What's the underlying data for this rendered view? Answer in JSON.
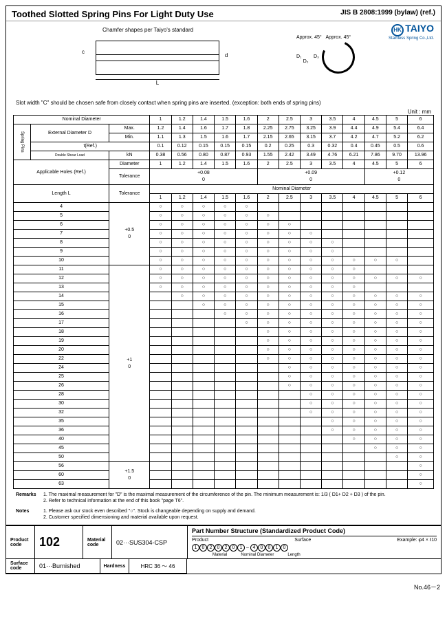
{
  "header": {
    "title": "Toothed Slotted Spring Pins For Light Duty Use",
    "ref": "JIS B 2808:1999 (bylaw) (ref.)"
  },
  "logo": {
    "brand": "TAIYO",
    "sub": "Stainless Spring Co.,Ltd.",
    "mark": "HK"
  },
  "diagram": {
    "chamfer": "Chamfer shapes per Taiyo's standard",
    "L": "L",
    "c": "c",
    "d": "d",
    "D": "D",
    "approx": "Approx.",
    "d1": "D₁",
    "d2": "D₂",
    "d3": "D₃",
    "a45": "45°"
  },
  "slotNote": "Slot width \"C\" should be chosen safe from closely contact when spring pins are inserted. (exception: both ends of spring pins)",
  "unit": "Unit : mm",
  "specHeaders": {
    "nominal": "Nominal Diameter",
    "spring": "Spring Pins",
    "ext": "External Diameter D",
    "max": "Max.",
    "min": "Min.",
    "tref": "t(Ref.)",
    "shear": "Double Shear Load",
    "kn": "kN",
    "holes": "Applicable Holes (Ref.)",
    "dia": "Diameter",
    "tol": "Tolerance",
    "lenL": "Length L"
  },
  "diameters": [
    "1",
    "1.2",
    "1.4",
    "1.5",
    "1.6",
    "2",
    "2.5",
    "3",
    "3.5",
    "4",
    "4.5",
    "5",
    "6"
  ],
  "rows": {
    "max": [
      "1.2",
      "1.4",
      "1.6",
      "1.7",
      "1.8",
      "2.25",
      "2.75",
      "3.25",
      "3.9",
      "4.4",
      "4.9",
      "5.4",
      "6.4"
    ],
    "min": [
      "1.1",
      "1.3",
      "1.5",
      "1.6",
      "1.7",
      "2.15",
      "2.65",
      "3.15",
      "3.7",
      "4.2",
      "4.7",
      "5.2",
      "6.2"
    ],
    "t": [
      "0.1",
      "0.12",
      "0.15",
      "0.15",
      "0.15",
      "0.2",
      "0.25",
      "0.3",
      "0.32",
      "0.4",
      "0.45",
      "0.5",
      "0.6"
    ],
    "kn": [
      "0.38",
      "0.56",
      "0.80",
      "0.87",
      "0.93",
      "1.55",
      "2.42",
      "3.49",
      "4.76",
      "6.21",
      "7.86",
      "9.70",
      "13.96"
    ],
    "holedia": [
      "1",
      "1.2",
      "1.4",
      "1.5",
      "1.6",
      "2",
      "2.5",
      "3",
      "3.5",
      "4",
      "4.5",
      "5",
      "6"
    ]
  },
  "tolGroups": [
    {
      "span": 5,
      "v": "+0.08\n0"
    },
    {
      "span": 5,
      "v": "+0.09\n0"
    },
    {
      "span": 3,
      "v": "+0.12\n0"
    }
  ],
  "lengths": [
    "4",
    "5",
    "6",
    "7",
    "8",
    "9",
    "10",
    "11",
    "12",
    "13",
    "14",
    "15",
    "16",
    "17",
    "18",
    "19",
    "20",
    "22",
    "24",
    "25",
    "26",
    "28",
    "30",
    "32",
    "35",
    "36",
    "40",
    "45",
    "50",
    "56",
    "60",
    "63"
  ],
  "lenTol": [
    {
      "span": 7,
      "v": "+0.5\n0"
    },
    {
      "span": 22,
      "v": "+1\n0"
    },
    {
      "span": 3,
      "v": "+1.5\n0"
    }
  ],
  "avail": {
    "4": [
      1,
      1,
      1,
      1,
      1,
      0,
      0,
      0,
      0,
      0,
      0,
      0,
      0
    ],
    "5": [
      1,
      1,
      1,
      1,
      1,
      1,
      0,
      0,
      0,
      0,
      0,
      0,
      0
    ],
    "6": [
      1,
      1,
      1,
      1,
      1,
      1,
      1,
      0,
      0,
      0,
      0,
      0,
      0
    ],
    "7": [
      1,
      1,
      1,
      1,
      1,
      1,
      1,
      1,
      0,
      0,
      0,
      0,
      0
    ],
    "8": [
      1,
      1,
      1,
      1,
      1,
      1,
      1,
      1,
      1,
      0,
      0,
      0,
      0
    ],
    "9": [
      1,
      1,
      1,
      1,
      1,
      1,
      1,
      1,
      1,
      0,
      0,
      0,
      0
    ],
    "10": [
      1,
      1,
      1,
      1,
      1,
      1,
      1,
      1,
      1,
      1,
      1,
      1,
      0
    ],
    "11": [
      1,
      1,
      1,
      1,
      1,
      1,
      1,
      1,
      1,
      1,
      0,
      0,
      0
    ],
    "12": [
      1,
      1,
      1,
      1,
      1,
      1,
      1,
      1,
      1,
      1,
      1,
      1,
      1
    ],
    "13": [
      1,
      1,
      1,
      1,
      1,
      1,
      1,
      1,
      1,
      1,
      0,
      0,
      0
    ],
    "14": [
      0,
      1,
      1,
      1,
      1,
      1,
      1,
      1,
      1,
      1,
      1,
      1,
      1
    ],
    "15": [
      0,
      0,
      1,
      1,
      1,
      1,
      1,
      1,
      1,
      1,
      1,
      1,
      1
    ],
    "16": [
      0,
      0,
      0,
      1,
      1,
      1,
      1,
      1,
      1,
      1,
      1,
      1,
      1
    ],
    "17": [
      0,
      0,
      0,
      0,
      1,
      1,
      1,
      1,
      1,
      1,
      1,
      1,
      1
    ],
    "18": [
      0,
      0,
      0,
      0,
      0,
      1,
      1,
      1,
      1,
      1,
      1,
      1,
      1
    ],
    "19": [
      0,
      0,
      0,
      0,
      0,
      1,
      1,
      1,
      1,
      1,
      1,
      1,
      1
    ],
    "20": [
      0,
      0,
      0,
      0,
      0,
      1,
      1,
      1,
      1,
      1,
      1,
      1,
      1
    ],
    "22": [
      0,
      0,
      0,
      0,
      0,
      1,
      1,
      1,
      1,
      1,
      1,
      1,
      1
    ],
    "24": [
      0,
      0,
      0,
      0,
      0,
      0,
      1,
      1,
      1,
      1,
      1,
      1,
      1
    ],
    "25": [
      0,
      0,
      0,
      0,
      0,
      0,
      1,
      1,
      1,
      1,
      1,
      1,
      1
    ],
    "26": [
      0,
      0,
      0,
      0,
      0,
      0,
      1,
      1,
      1,
      1,
      1,
      1,
      1
    ],
    "28": [
      0,
      0,
      0,
      0,
      0,
      0,
      0,
      1,
      1,
      1,
      1,
      1,
      1
    ],
    "30": [
      0,
      0,
      0,
      0,
      0,
      0,
      0,
      1,
      1,
      1,
      1,
      1,
      1
    ],
    "32": [
      0,
      0,
      0,
      0,
      0,
      0,
      0,
      1,
      1,
      1,
      1,
      1,
      1
    ],
    "35": [
      0,
      0,
      0,
      0,
      0,
      0,
      0,
      0,
      1,
      1,
      1,
      1,
      1
    ],
    "36": [
      0,
      0,
      0,
      0,
      0,
      0,
      0,
      0,
      1,
      1,
      1,
      1,
      1
    ],
    "40": [
      0,
      0,
      0,
      0,
      0,
      0,
      0,
      0,
      0,
      1,
      1,
      1,
      1
    ],
    "45": [
      0,
      0,
      0,
      0,
      0,
      0,
      0,
      0,
      0,
      0,
      1,
      1,
      1
    ],
    "50": [
      0,
      0,
      0,
      0,
      0,
      0,
      0,
      0,
      0,
      0,
      0,
      1,
      1
    ],
    "56": [
      0,
      0,
      0,
      0,
      0,
      0,
      0,
      0,
      0,
      0,
      0,
      0,
      1
    ],
    "60": [
      0,
      0,
      0,
      0,
      0,
      0,
      0,
      0,
      0,
      0,
      0,
      0,
      1
    ],
    "63": [
      0,
      0,
      0,
      0,
      0,
      0,
      0,
      0,
      0,
      0,
      0,
      0,
      1
    ]
  },
  "remarks": {
    "label": "Remarks",
    "r1": "1. The maximal measurement for \"D\" is the maximal measurement of the circumference of the pin. The minimum measurement is: 1/3 ( D1+ D2 + D3 ) of the pin.",
    "r2": "2. Refer to technical information at the end of this book \"page T6\"."
  },
  "notes": {
    "label": "Notes",
    "n1": "1. Please ask our stock even described \"○\". Stock is changeable depending on supply and demand.",
    "n2": "2. Customer specified dimensioning and material available upon request."
  },
  "footer": {
    "prodLabel": "Product code",
    "prod": "102",
    "matLabel": "Material code",
    "mat": "02···SUS304-CSP",
    "surfLabel": "Surface code",
    "surf": "01···Burnished",
    "hardLabel": "Hardness",
    "hard": "HRC 36 ～ 46",
    "pnsTitle": "Part Number Structure (Standardized Product Code)",
    "ex": "Example:",
    "exval": "φ4 × ℓ10",
    "labels": {
      "p": "Product",
      "m": "Material",
      "s": "Surface",
      "nd": "Nominal Diameter",
      "l": "Length"
    },
    "code": [
      "1",
      "0",
      "2",
      "0",
      "2",
      "0",
      "1",
      "-",
      "4",
      "0",
      "0",
      "1",
      "0"
    ]
  },
  "pageNo": "No.46－2"
}
